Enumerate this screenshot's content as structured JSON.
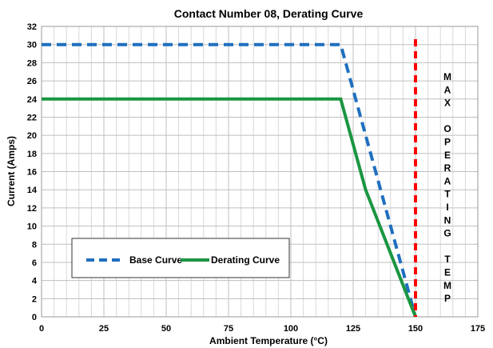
{
  "chart_data": {
    "type": "line",
    "title": "Contact Number 08, Derating Curve",
    "xlabel": "Ambient Temperature (°C)",
    "ylabel": "Current (Amps)",
    "xlim": [
      0,
      175
    ],
    "ylim": [
      0,
      32
    ],
    "x_ticks": [
      "0",
      "25",
      "50",
      "75",
      "100",
      "125",
      "150",
      "175"
    ],
    "y_ticks": [
      "0",
      "2",
      "4",
      "6",
      "8",
      "10",
      "12",
      "14",
      "16",
      "18",
      "20",
      "22",
      "24",
      "26",
      "28",
      "30",
      "32"
    ],
    "x_tick_values": [
      0,
      25,
      50,
      75,
      100,
      125,
      150,
      175
    ],
    "y_tick_values": [
      0,
      2,
      4,
      6,
      8,
      10,
      12,
      14,
      16,
      18,
      20,
      22,
      24,
      26,
      28,
      30,
      32
    ],
    "grid": true,
    "legend_position": "bottom-left",
    "series": [
      {
        "name": "Base Curve",
        "color": "#1f6fbf",
        "style": "dashed",
        "x": [
          0,
          120,
          150
        ],
        "y": [
          30,
          30,
          0
        ]
      },
      {
        "name": "Derating Curve",
        "color": "#1a9641",
        "style": "solid",
        "x": [
          0,
          120,
          130,
          150
        ],
        "y": [
          24,
          24,
          14,
          0
        ]
      }
    ],
    "annotations": [
      {
        "type": "vertical_line",
        "x": 150,
        "color": "#ff0000",
        "style": "dashed"
      },
      {
        "type": "vertical_text",
        "letters": [
          "M",
          "A",
          "X",
          "",
          "O",
          "P",
          "E",
          "R",
          "A",
          "T",
          "I",
          "N",
          "G",
          "",
          "T",
          "E",
          "M",
          "P"
        ]
      }
    ]
  }
}
